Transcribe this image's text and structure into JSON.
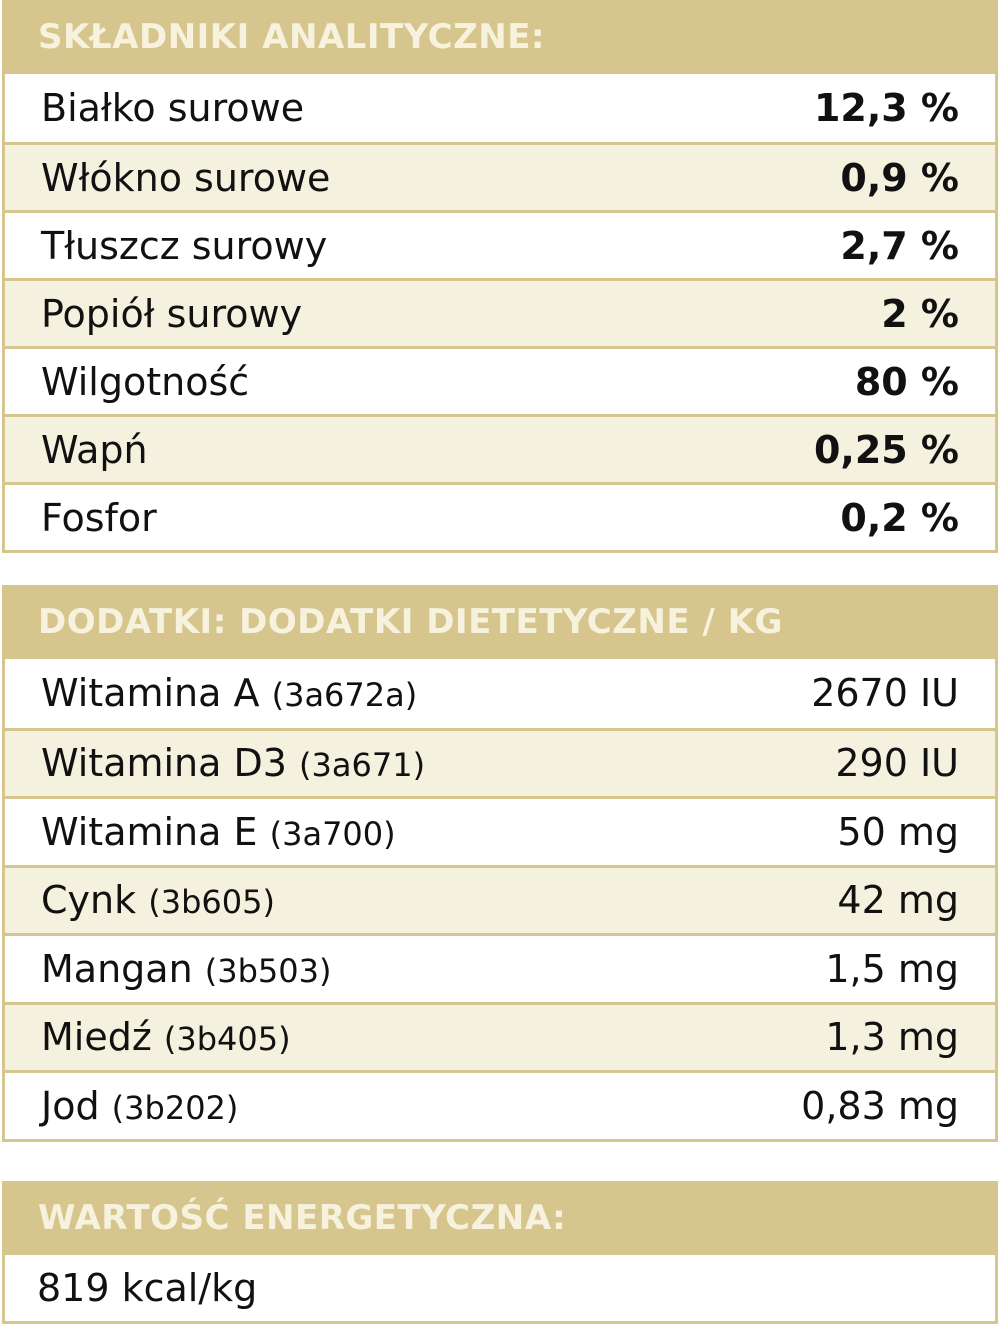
{
  "analytical": {
    "title": "SKŁADNIKI ANALITYCZNE:",
    "rows": [
      {
        "name": "Białko surowe",
        "value": "12,3 %"
      },
      {
        "name": "Włókno surowe",
        "value": "0,9 %"
      },
      {
        "name": "Tłuszcz surowy",
        "value": "2,7 %"
      },
      {
        "name": "Popiół surowy",
        "value": "2 %"
      },
      {
        "name": "Wilgotność",
        "value": "80 %"
      },
      {
        "name": "Wapń",
        "value": "0,25 %"
      },
      {
        "name": "Fosfor",
        "value": "0,2 %"
      }
    ]
  },
  "additives": {
    "title": "DODATKI: DODATKI DIETETYCZNE / KG",
    "rows": [
      {
        "name": "Witamina A",
        "code": "(3a672a)",
        "value": "2670 IU"
      },
      {
        "name": "Witamina D3",
        "code": "(3a671)",
        "value": "290 IU"
      },
      {
        "name": "Witamina E",
        "code": "(3a700)",
        "value": "50 mg"
      },
      {
        "name": "Cynk",
        "code": "(3b605)",
        "value": "42 mg"
      },
      {
        "name": "Mangan",
        "code": "(3b503)",
        "value": "1,5 mg"
      },
      {
        "name": "Miedź",
        "code": "(3b405)",
        "value": "1,3 mg"
      },
      {
        "name": "Jod",
        "code": "(3b202)",
        "value": "0,83 mg"
      }
    ]
  },
  "energy": {
    "title": "WARTOŚĆ ENERGETYCZNA:",
    "value": "819 kcal/kg"
  },
  "colors": {
    "header_bg": "#d6c68e",
    "header_text": "#f7f2de",
    "alt_row_bg": "#f5f1df"
  }
}
